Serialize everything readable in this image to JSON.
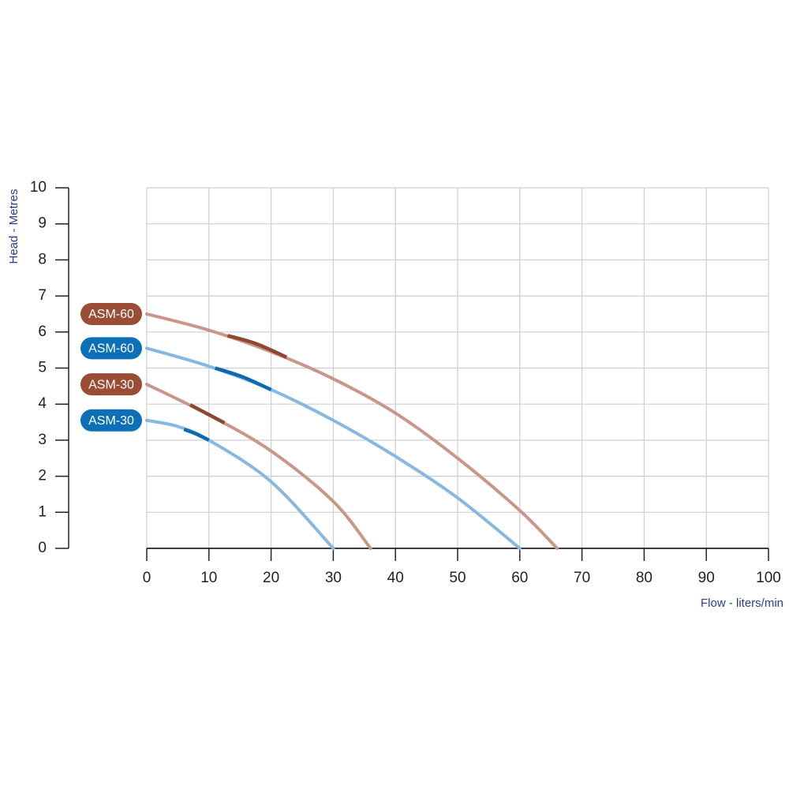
{
  "chart_data": {
    "type": "line",
    "x_label": "Flow - liters/min",
    "y_label": "Head - Metres",
    "xlim": [
      0,
      100
    ],
    "xticks": [
      0,
      10,
      20,
      30,
      40,
      50,
      60,
      70,
      80,
      90,
      100
    ],
    "ylim": [
      0,
      10
    ],
    "yticks": [
      0,
      1,
      2,
      3,
      4,
      5,
      6,
      7,
      8,
      9,
      10
    ],
    "grid": true,
    "series": [
      {
        "name": "ASM-60",
        "color": "#c9968a",
        "badge_color": "#9a4c34",
        "highlight_color": "#8e4730",
        "x": [
          0,
          10,
          20,
          30,
          40,
          50,
          60,
          66
        ],
        "values": [
          6.5,
          6.05,
          5.45,
          4.7,
          3.75,
          2.5,
          1.05,
          0
        ],
        "highlight": {
          "x": [
            13,
            17.5,
            22.5
          ],
          "values": [
            5.9,
            5.68,
            5.3
          ]
        }
      },
      {
        "name": "ASM-60",
        "color": "#86b8e2",
        "badge_color": "#0b70b8",
        "highlight_color": "#0a69b0",
        "x": [
          0,
          10,
          20,
          30,
          40,
          50,
          60
        ],
        "values": [
          5.55,
          5.05,
          4.4,
          3.55,
          2.55,
          1.4,
          0
        ],
        "highlight": {
          "x": [
            11,
            15.5,
            20
          ],
          "values": [
            5.0,
            4.75,
            4.4
          ]
        }
      },
      {
        "name": "ASM-30",
        "color": "#c9968a",
        "badge_color": "#9a4c34",
        "highlight_color": "#8e4730",
        "x": [
          0,
          10,
          20,
          30,
          36
        ],
        "values": [
          4.55,
          3.7,
          2.7,
          1.3,
          0
        ],
        "highlight": {
          "x": [
            7,
            9.75,
            12.5
          ],
          "values": [
            3.98,
            3.73,
            3.48
          ]
        }
      },
      {
        "name": "ASM-30",
        "color": "#86b8e2",
        "badge_color": "#0b70b8",
        "highlight_color": "#0a69b0",
        "x": [
          0,
          5,
          10,
          20,
          30
        ],
        "values": [
          3.55,
          3.38,
          3.0,
          1.85,
          0
        ],
        "highlight": {
          "x": [
            6,
            8,
            10
          ],
          "values": [
            3.3,
            3.17,
            3.0
          ]
        }
      }
    ]
  }
}
